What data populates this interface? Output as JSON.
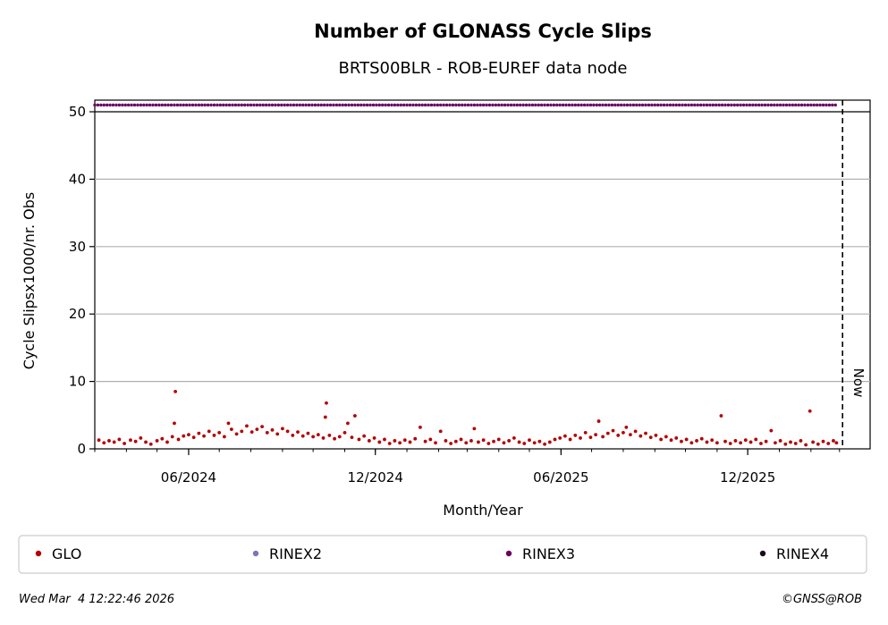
{
  "chart_data": {
    "type": "scatter",
    "title": "Number of GLONASS Cycle Slips",
    "subtitle": "BRTS00BLR - ROB-EUREF data node",
    "xlabel": "Month/Year",
    "ylabel": "Cycle Slipsx1000/nr. Obs",
    "x_range": [
      "2024-03-01",
      "2026-03-31"
    ],
    "ylim": [
      0,
      50
    ],
    "y_ticks": [
      0,
      10,
      20,
      30,
      40,
      50
    ],
    "x_ticks": [
      {
        "date": "2024-06-01",
        "label": "06/2024"
      },
      {
        "date": "2024-12-01",
        "label": "12/2024"
      },
      {
        "date": "2025-06-01",
        "label": "06/2025"
      },
      {
        "date": "2025-12-01",
        "label": "12/2025"
      }
    ],
    "grid": "horizontal",
    "now_marker": {
      "date": "2026-03-04",
      "label": "Now"
    },
    "series": [
      {
        "name": "GLO",
        "color": "#b30000",
        "points": [
          [
            "2024-03-05",
            1.3
          ],
          [
            "2024-03-10",
            0.9
          ],
          [
            "2024-03-15",
            1.2
          ],
          [
            "2024-03-20",
            1.0
          ],
          [
            "2024-03-25",
            1.4
          ],
          [
            "2024-03-30",
            0.8
          ],
          [
            "2024-04-05",
            1.3
          ],
          [
            "2024-04-10",
            1.1
          ],
          [
            "2024-04-15",
            1.6
          ],
          [
            "2024-04-20",
            1.0
          ],
          [
            "2024-04-25",
            0.7
          ],
          [
            "2024-05-01",
            1.2
          ],
          [
            "2024-05-06",
            1.5
          ],
          [
            "2024-05-11",
            1.0
          ],
          [
            "2024-05-16",
            1.8
          ],
          [
            "2024-05-18",
            3.8
          ],
          [
            "2024-05-19",
            8.5
          ],
          [
            "2024-05-22",
            1.4
          ],
          [
            "2024-05-27",
            1.9
          ],
          [
            "2024-06-01",
            2.1
          ],
          [
            "2024-06-06",
            1.7
          ],
          [
            "2024-06-11",
            2.3
          ],
          [
            "2024-06-16",
            1.9
          ],
          [
            "2024-06-21",
            2.6
          ],
          [
            "2024-06-26",
            2.0
          ],
          [
            "2024-07-01",
            2.4
          ],
          [
            "2024-07-06",
            1.8
          ],
          [
            "2024-07-10",
            3.8
          ],
          [
            "2024-07-13",
            2.9
          ],
          [
            "2024-07-18",
            2.2
          ],
          [
            "2024-07-23",
            2.6
          ],
          [
            "2024-07-28",
            3.4
          ],
          [
            "2024-08-02",
            2.5
          ],
          [
            "2024-08-07",
            2.9
          ],
          [
            "2024-08-12",
            3.3
          ],
          [
            "2024-08-17",
            2.4
          ],
          [
            "2024-08-22",
            2.8
          ],
          [
            "2024-08-27",
            2.2
          ],
          [
            "2024-09-01",
            3.0
          ],
          [
            "2024-09-06",
            2.6
          ],
          [
            "2024-09-11",
            2.0
          ],
          [
            "2024-09-16",
            2.5
          ],
          [
            "2024-09-21",
            1.9
          ],
          [
            "2024-09-26",
            2.3
          ],
          [
            "2024-10-01",
            1.8
          ],
          [
            "2024-10-06",
            2.1
          ],
          [
            "2024-10-11",
            1.6
          ],
          [
            "2024-10-13",
            4.7
          ],
          [
            "2024-10-14",
            6.8
          ],
          [
            "2024-10-17",
            2.0
          ],
          [
            "2024-10-22",
            1.5
          ],
          [
            "2024-10-27",
            1.8
          ],
          [
            "2024-11-01",
            2.4
          ],
          [
            "2024-11-04",
            3.8
          ],
          [
            "2024-11-08",
            1.7
          ],
          [
            "2024-11-11",
            4.9
          ],
          [
            "2024-11-15",
            1.4
          ],
          [
            "2024-11-20",
            1.9
          ],
          [
            "2024-11-25",
            1.2
          ],
          [
            "2024-11-30",
            1.6
          ],
          [
            "2024-12-05",
            1.0
          ],
          [
            "2024-12-10",
            1.4
          ],
          [
            "2024-12-15",
            0.8
          ],
          [
            "2024-12-20",
            1.2
          ],
          [
            "2024-12-25",
            0.9
          ],
          [
            "2024-12-30",
            1.3
          ],
          [
            "2025-01-04",
            1.0
          ],
          [
            "2025-01-09",
            1.5
          ],
          [
            "2025-01-14",
            3.2
          ],
          [
            "2025-01-19",
            1.1
          ],
          [
            "2025-01-24",
            1.4
          ],
          [
            "2025-01-29",
            0.9
          ],
          [
            "2025-02-03",
            2.6
          ],
          [
            "2025-02-08",
            1.2
          ],
          [
            "2025-02-13",
            0.8
          ],
          [
            "2025-02-18",
            1.1
          ],
          [
            "2025-02-23",
            1.4
          ],
          [
            "2025-02-28",
            0.9
          ],
          [
            "2025-03-05",
            1.2
          ],
          [
            "2025-03-08",
            3.0
          ],
          [
            "2025-03-12",
            1.0
          ],
          [
            "2025-03-17",
            1.3
          ],
          [
            "2025-03-22",
            0.8
          ],
          [
            "2025-03-27",
            1.1
          ],
          [
            "2025-04-01",
            1.4
          ],
          [
            "2025-04-06",
            0.9
          ],
          [
            "2025-04-11",
            1.2
          ],
          [
            "2025-04-16",
            1.6
          ],
          [
            "2025-04-21",
            1.0
          ],
          [
            "2025-04-26",
            0.8
          ],
          [
            "2025-05-01",
            1.3
          ],
          [
            "2025-05-06",
            0.9
          ],
          [
            "2025-05-11",
            1.1
          ],
          [
            "2025-05-16",
            0.7
          ],
          [
            "2025-05-21",
            1.0
          ],
          [
            "2025-05-26",
            1.4
          ],
          [
            "2025-05-31",
            1.6
          ],
          [
            "2025-06-05",
            1.9
          ],
          [
            "2025-06-10",
            1.4
          ],
          [
            "2025-06-15",
            2.0
          ],
          [
            "2025-06-20",
            1.6
          ],
          [
            "2025-06-25",
            2.4
          ],
          [
            "2025-06-30",
            1.7
          ],
          [
            "2025-07-05",
            2.1
          ],
          [
            "2025-07-08",
            4.1
          ],
          [
            "2025-07-12",
            1.8
          ],
          [
            "2025-07-17",
            2.3
          ],
          [
            "2025-07-22",
            2.7
          ],
          [
            "2025-07-27",
            2.0
          ],
          [
            "2025-08-01",
            2.4
          ],
          [
            "2025-08-04",
            3.2
          ],
          [
            "2025-08-08",
            2.1
          ],
          [
            "2025-08-13",
            2.6
          ],
          [
            "2025-08-18",
            1.9
          ],
          [
            "2025-08-23",
            2.3
          ],
          [
            "2025-08-28",
            1.7
          ],
          [
            "2025-09-02",
            2.0
          ],
          [
            "2025-09-07",
            1.4
          ],
          [
            "2025-09-12",
            1.8
          ],
          [
            "2025-09-17",
            1.3
          ],
          [
            "2025-09-22",
            1.6
          ],
          [
            "2025-09-27",
            1.1
          ],
          [
            "2025-10-02",
            1.4
          ],
          [
            "2025-10-07",
            0.9
          ],
          [
            "2025-10-12",
            1.2
          ],
          [
            "2025-10-17",
            1.5
          ],
          [
            "2025-10-22",
            1.0
          ],
          [
            "2025-10-27",
            1.3
          ],
          [
            "2025-11-01",
            0.9
          ],
          [
            "2025-11-05",
            4.9
          ],
          [
            "2025-11-09",
            1.1
          ],
          [
            "2025-11-14",
            0.8
          ],
          [
            "2025-11-19",
            1.2
          ],
          [
            "2025-11-24",
            0.9
          ],
          [
            "2025-11-29",
            1.3
          ],
          [
            "2025-12-04",
            1.0
          ],
          [
            "2025-12-09",
            1.4
          ],
          [
            "2025-12-14",
            0.8
          ],
          [
            "2025-12-19",
            1.1
          ],
          [
            "2025-12-24",
            2.7
          ],
          [
            "2025-12-28",
            0.9
          ],
          [
            "2026-01-02",
            1.2
          ],
          [
            "2026-01-07",
            0.7
          ],
          [
            "2026-01-12",
            1.0
          ],
          [
            "2026-01-17",
            0.8
          ],
          [
            "2026-01-22",
            1.2
          ],
          [
            "2026-01-27",
            0.6
          ],
          [
            "2026-01-31",
            5.6
          ],
          [
            "2026-02-03",
            1.0
          ],
          [
            "2026-02-08",
            0.7
          ],
          [
            "2026-02-13",
            1.1
          ],
          [
            "2026-02-18",
            0.8
          ],
          [
            "2026-02-23",
            1.2
          ],
          [
            "2026-02-26",
            0.9
          ]
        ]
      },
      {
        "name": "RINEX2",
        "color": "#7b76b8",
        "points": []
      },
      {
        "name": "RINEX3",
        "color": "#6a005f",
        "band_value": 51,
        "range": [
          "2024-03-01",
          "2026-02-27"
        ]
      },
      {
        "name": "RINEX4",
        "color": "#1a0a1f",
        "points": []
      }
    ]
  },
  "legend": {
    "placement": "bottom",
    "items": [
      {
        "label": "GLO",
        "color": "#b30000"
      },
      {
        "label": "RINEX2",
        "color": "#7b76b8"
      },
      {
        "label": "RINEX3",
        "color": "#6a005f"
      },
      {
        "label": "RINEX4",
        "color": "#1a0a1f"
      }
    ]
  },
  "footer": {
    "timestamp": "Wed Mar  4 12:22:46 2026",
    "copyright": "©GNSS@ROB"
  }
}
